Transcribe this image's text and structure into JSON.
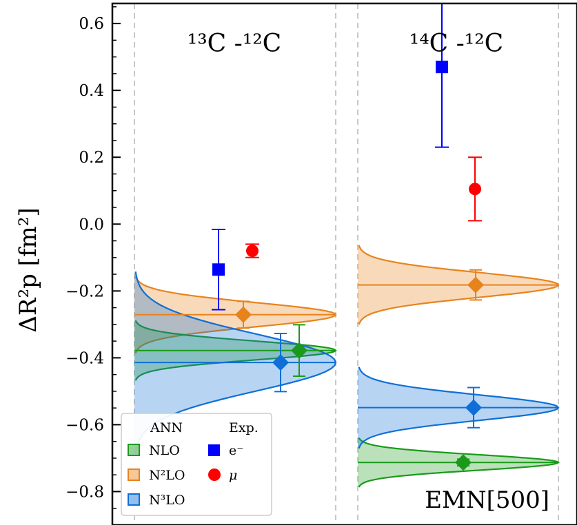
{
  "chart_data": {
    "type": "scatter",
    "ylabel": "ΔR²p [fm²]",
    "ylim": [
      -0.9,
      0.66
    ],
    "yticks": [
      0.6,
      0.4,
      0.2,
      0.0,
      -0.2,
      -0.4,
      -0.6,
      -0.8
    ],
    "ytick_labels": [
      "0.6",
      "0.4",
      "0.2",
      "0.0",
      "−0.2",
      "−0.4",
      "−0.6",
      "−0.8"
    ],
    "annotation": "EMN[500]",
    "grid": "vertical-dashed",
    "legend": {
      "placement": "lower-left",
      "group_left": "ANN",
      "group_right": "Exp.",
      "items_left": [
        "NLO",
        "N²LO",
        "N³LO"
      ],
      "items_right": [
        "e⁻",
        "μ"
      ]
    },
    "colors": {
      "NLO": "#1a9a1a",
      "N2LO": "#e8831c",
      "N3LO": "#0f6fd6",
      "electron": "#0000ff",
      "muon": "#ff0000"
    },
    "panels": [
      {
        "label": "¹³C -¹²C",
        "ann": [
          {
            "order": "NLO",
            "mean": -0.378,
            "sigma": 0.028,
            "point": -0.378,
            "err": 0.077
          },
          {
            "order": "N2LO",
            "mean": -0.271,
            "sigma": 0.036,
            "point": -0.271,
            "err": 0.04
          },
          {
            "order": "N3LO",
            "mean": -0.414,
            "sigma": 0.085,
            "point": -0.414,
            "err": 0.087
          }
        ],
        "exp": [
          {
            "type": "electron",
            "value": -0.136,
            "err": 0.12
          },
          {
            "type": "muon",
            "value": -0.08,
            "err": 0.02
          }
        ]
      },
      {
        "label": "¹⁴C -¹²C",
        "ann": [
          {
            "order": "NLO",
            "mean": -0.713,
            "sigma": 0.023,
            "point": -0.713,
            "err": 0.01
          },
          {
            "order": "N2LO",
            "mean": -0.182,
            "sigma": 0.037,
            "point": -0.182,
            "err": 0.045
          },
          {
            "order": "N3LO",
            "mean": -0.549,
            "sigma": 0.038,
            "point": -0.549,
            "err": 0.06
          }
        ],
        "exp": [
          {
            "type": "electron",
            "value": 0.47,
            "err": 0.24
          },
          {
            "type": "muon",
            "value": 0.105,
            "err": 0.095
          }
        ]
      }
    ]
  }
}
